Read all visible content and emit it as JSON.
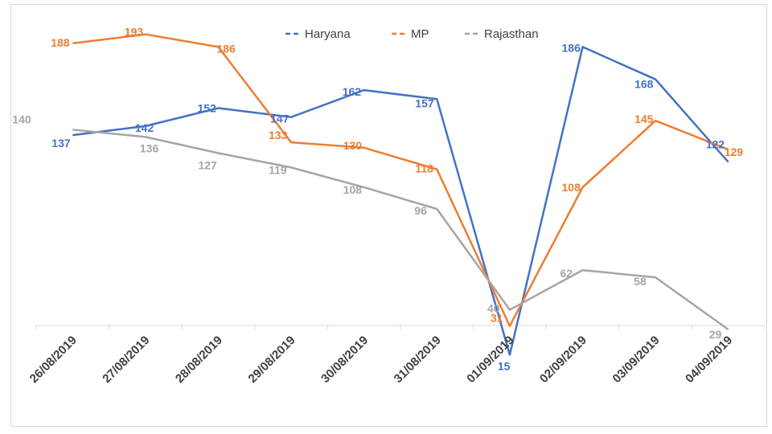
{
  "chart_data": {
    "type": "line",
    "title": "",
    "xlabel": "",
    "ylabel": "",
    "categories": [
      "26/08/2019",
      "27/08/2019",
      "28/08/2019",
      "29/08/2019",
      "30/08/2019",
      "31/08/2019",
      "01/09/2019",
      "02/09/2019",
      "03/09/2019",
      "04/09/2019"
    ],
    "series": [
      {
        "name": "Haryana",
        "color": "#4472c4",
        "values": [
          137,
          142,
          152,
          147,
          162,
          157,
          15,
          186,
          168,
          122
        ]
      },
      {
        "name": "MP",
        "color": "#ed7d31",
        "values": [
          188,
          193,
          186,
          133,
          130,
          118,
          31,
          108,
          145,
          129
        ]
      },
      {
        "name": "Rajasthan",
        "color": "#a5a5a5",
        "values": [
          140,
          136,
          127,
          119,
          108,
          96,
          40,
          62,
          58,
          29
        ]
      }
    ],
    "ylim": [
      0,
      200
    ],
    "grid": false,
    "legend": "top-center",
    "y_axis_visible": false
  }
}
